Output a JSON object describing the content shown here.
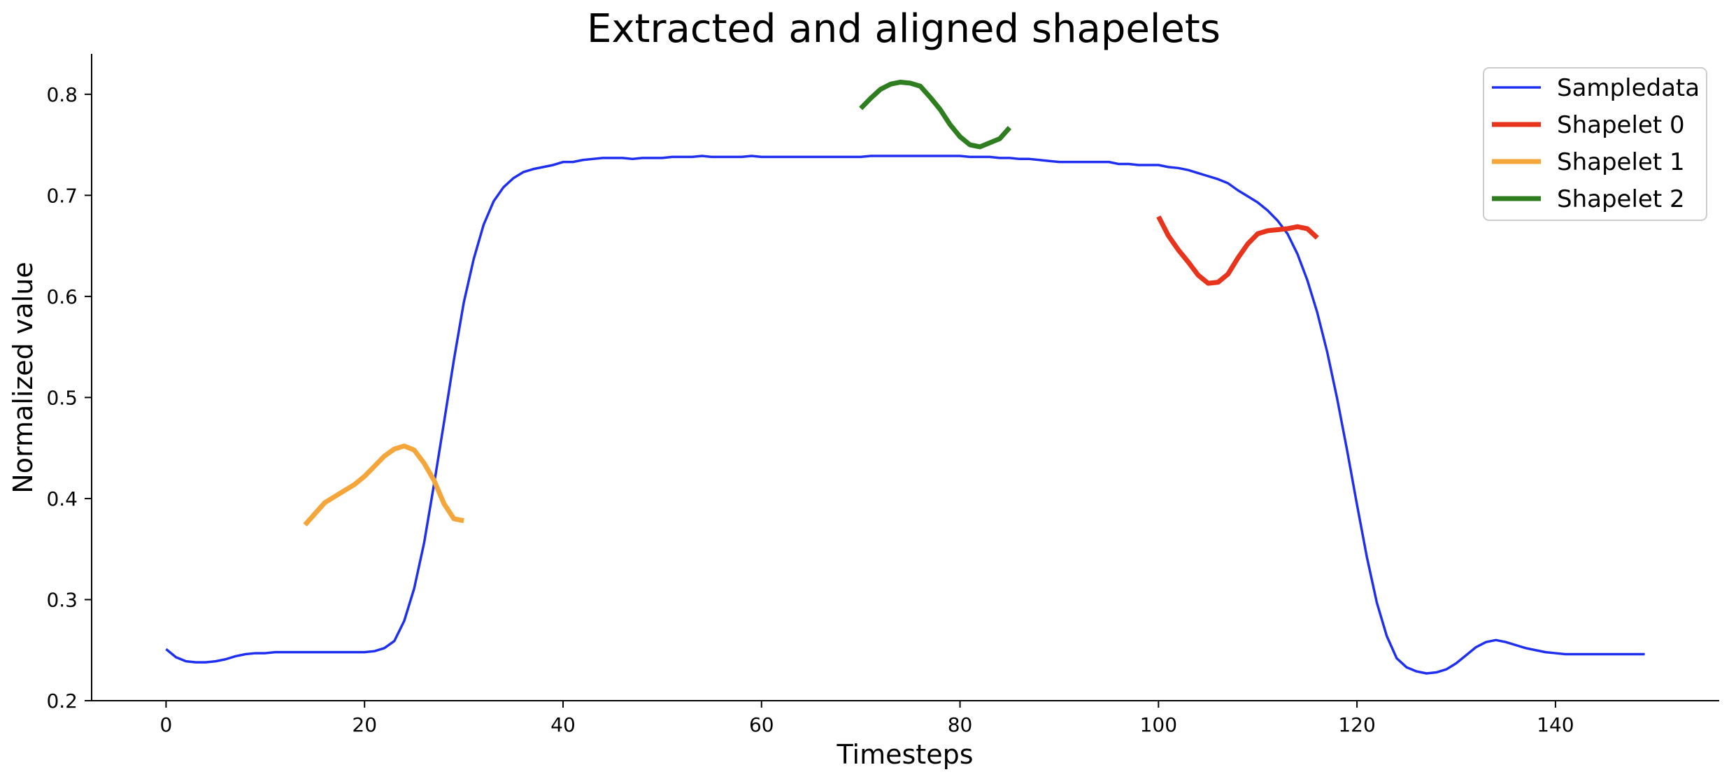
{
  "chart_data": {
    "type": "line",
    "title": "Extracted and aligned shapelets",
    "xlabel": "Timesteps",
    "ylabel": "Normalized value",
    "xlim": [
      -7.5,
      156.5
    ],
    "ylim": [
      0.2,
      0.84
    ],
    "xticks": [
      0,
      20,
      40,
      60,
      80,
      100,
      120,
      140
    ],
    "yticks": [
      0.2,
      0.3,
      0.4,
      0.5,
      0.6,
      0.7,
      0.8
    ],
    "legend_position": "top-right",
    "grid": false,
    "series": [
      {
        "name": "Sampledata",
        "color": "#1f2ff0",
        "width": 3.5,
        "x_start": 0,
        "values": [
          0.251,
          0.243,
          0.239,
          0.238,
          0.238,
          0.239,
          0.241,
          0.244,
          0.246,
          0.247,
          0.247,
          0.248,
          0.248,
          0.248,
          0.248,
          0.248,
          0.248,
          0.248,
          0.248,
          0.248,
          0.248,
          0.249,
          0.252,
          0.259,
          0.279,
          0.311,
          0.356,
          0.414,
          0.475,
          0.537,
          0.594,
          0.637,
          0.671,
          0.694,
          0.708,
          0.717,
          0.723,
          0.726,
          0.728,
          0.73,
          0.733,
          0.733,
          0.735,
          0.736,
          0.737,
          0.737,
          0.737,
          0.736,
          0.737,
          0.737,
          0.737,
          0.738,
          0.738,
          0.738,
          0.739,
          0.738,
          0.738,
          0.738,
          0.738,
          0.739,
          0.738,
          0.738,
          0.738,
          0.738,
          0.738,
          0.738,
          0.738,
          0.738,
          0.738,
          0.738,
          0.738,
          0.739,
          0.739,
          0.739,
          0.739,
          0.739,
          0.739,
          0.739,
          0.739,
          0.739,
          0.739,
          0.738,
          0.738,
          0.738,
          0.737,
          0.737,
          0.736,
          0.736,
          0.735,
          0.734,
          0.733,
          0.733,
          0.733,
          0.733,
          0.733,
          0.733,
          0.731,
          0.731,
          0.73,
          0.73,
          0.73,
          0.728,
          0.727,
          0.725,
          0.722,
          0.719,
          0.716,
          0.712,
          0.705,
          0.699,
          0.693,
          0.685,
          0.675,
          0.662,
          0.642,
          0.616,
          0.584,
          0.545,
          0.499,
          0.448,
          0.394,
          0.342,
          0.297,
          0.264,
          0.242,
          0.233,
          0.229,
          0.227,
          0.228,
          0.231,
          0.237,
          0.245,
          0.253,
          0.258,
          0.26,
          0.258,
          0.255,
          0.252,
          0.25,
          0.248,
          0.247,
          0.246,
          0.246,
          0.246,
          0.246,
          0.246,
          0.246,
          0.246,
          0.246,
          0.246
        ]
      },
      {
        "name": "Shapelet 0",
        "color": "#e8341c",
        "width": 7,
        "x_start": 100,
        "values": [
          0.679,
          0.66,
          0.646,
          0.634,
          0.621,
          0.613,
          0.614,
          0.622,
          0.638,
          0.652,
          0.662,
          0.665,
          0.666,
          0.667,
          0.669,
          0.667,
          0.658
        ]
      },
      {
        "name": "Shapelet 1",
        "color": "#f4a63a",
        "width": 7,
        "x_start": 14,
        "values": [
          0.374,
          0.385,
          0.396,
          0.402,
          0.408,
          0.414,
          0.422,
          0.432,
          0.442,
          0.449,
          0.452,
          0.448,
          0.435,
          0.418,
          0.395,
          0.38,
          0.378
        ]
      },
      {
        "name": "Shapelet 2",
        "color": "#2e7d1f",
        "width": 7,
        "x_start": 70,
        "values": [
          0.786,
          0.796,
          0.805,
          0.81,
          0.812,
          0.811,
          0.808,
          0.797,
          0.785,
          0.77,
          0.758,
          0.75,
          0.748,
          0.752,
          0.756,
          0.767
        ]
      }
    ]
  }
}
